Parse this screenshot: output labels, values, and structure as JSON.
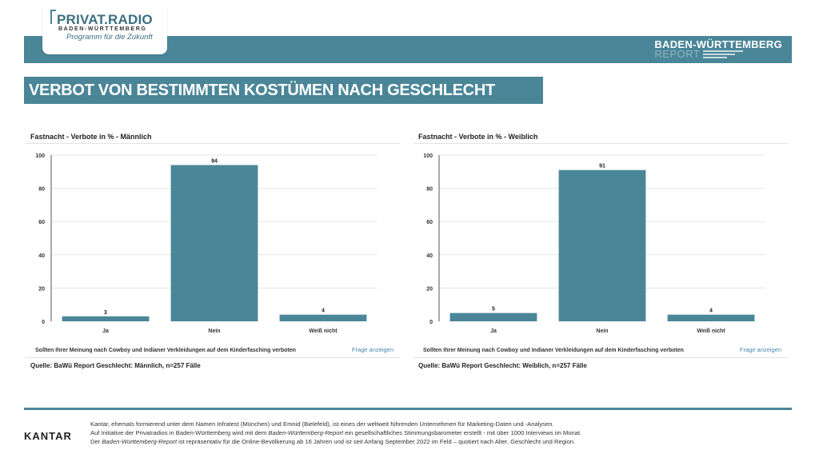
{
  "header": {
    "logo_main": "PRIVAT.RADIO",
    "logo_sub": "BADEN-WÜRTTEMBERG",
    "logo_tagline": "Programm für die Zukunft",
    "brand_title": "BADEN-WÜRTTEMBERG",
    "brand_subtitle": "REPORT",
    "accent_color": "#4a8698"
  },
  "page_title": "VERBOT VON BESTIMMTEN KOSTÜMEN NACH GESCHLECHT",
  "panels": [
    {
      "title": "Fastnacht - Verbote in % - Männlich",
      "question": "Sollten Ihrer Meinung nach Cowboy und Indianer Verkleidungen auf dem Kinderfasching verboten",
      "link": "Frage anzeigen",
      "source": "Quelle: BaWü Report Geschlecht: Männlich, n=257 Fälle"
    },
    {
      "title": "Fastnacht - Verbote in % - Weiblich",
      "question": "Sollten Ihrer Meinung nach Cowboy und Indianer Verkleidungen auf dem Kinderfasching verboten",
      "link": "Frage anzeigen",
      "source": "Quelle: BaWü Report Geschlecht: Weiblich, n=257 Fälle"
    }
  ],
  "chart_data": [
    {
      "type": "bar",
      "title": "Fastnacht - Verbote in % - Männlich",
      "categories": [
        "Ja",
        "Nein",
        "Weiß nicht"
      ],
      "values": [
        3,
        94,
        4
      ],
      "ylim": [
        0,
        100
      ],
      "yticks": [
        0,
        20,
        40,
        60,
        80,
        100
      ],
      "grid": true,
      "color": "#4a8698"
    },
    {
      "type": "bar",
      "title": "Fastnacht - Verbote in % - Weiblich",
      "categories": [
        "Ja",
        "Nein",
        "Weiß nicht"
      ],
      "values": [
        5,
        91,
        4
      ],
      "ylim": [
        0,
        100
      ],
      "yticks": [
        0,
        20,
        40,
        60,
        80,
        100
      ],
      "grid": true,
      "color": "#4a8698"
    }
  ],
  "footer": {
    "logo": "KANTAR",
    "line1": "Kantar, ehemals formierend unter dem Namen Infratest (München) und Emnid (Bielefeld), ist eines der weltweit führenden Unternehmen für Marketing-Daten und -Analysen.",
    "line2_a": "Auf Initiative der Privatradios in Baden-Württemberg wird mit dem ",
    "line2_em": "Baden-Württemberg-Report",
    "line2_b": " ein gesellschaftliches Stimmungsbarometer erstellt - mit über 1000 Interviews im Monat.",
    "line3_a": "Der ",
    "line3_em": "Baden-Württemberg-Report",
    "line3_b": " ist repräsentativ für die Online-Bevölkerung ab 16 Jahren und ist seit Anfang September 2022 im Feld – quotiert nach Alter, Geschlecht und Region."
  }
}
